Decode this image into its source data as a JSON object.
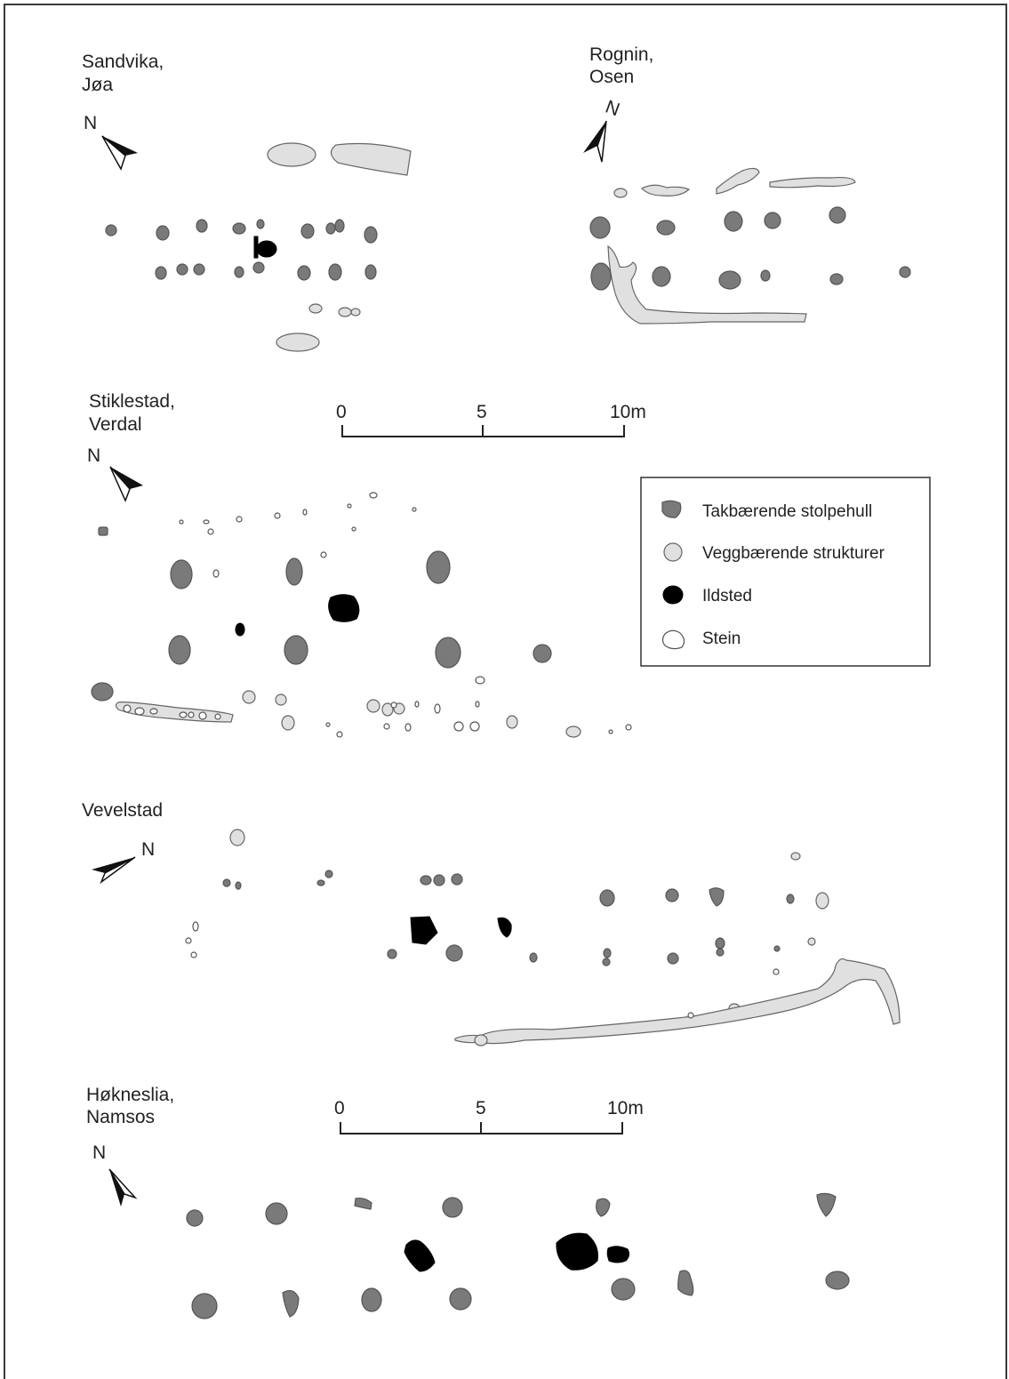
{
  "sites": [
    {
      "name": "Sandvika,",
      "sub": "Jøa"
    },
    {
      "name": "Rognin,",
      "sub": "Osen"
    },
    {
      "name": "Stiklestad,",
      "sub": "Verdal"
    },
    {
      "name": "Vevelstad",
      "sub": ""
    },
    {
      "name": "Høkneslia,",
      "sub": "Namsos"
    }
  ],
  "north_label": "N",
  "scale_bars": [
    {
      "ticks": [
        "0",
        "5",
        "10m"
      ]
    },
    {
      "ticks": [
        "0",
        "5",
        "10m"
      ]
    }
  ],
  "legend": {
    "items": [
      {
        "type": "post",
        "label": "Takbærende stolpehull",
        "color": "#7a7a7a"
      },
      {
        "type": "wall",
        "label": "Veggbærende strukturer",
        "color": "#e0e0e0"
      },
      {
        "type": "hearth",
        "label": "Ildsted",
        "color": "#000000"
      },
      {
        "type": "stone",
        "label": "Stein",
        "color": "#ffffff"
      }
    ]
  }
}
